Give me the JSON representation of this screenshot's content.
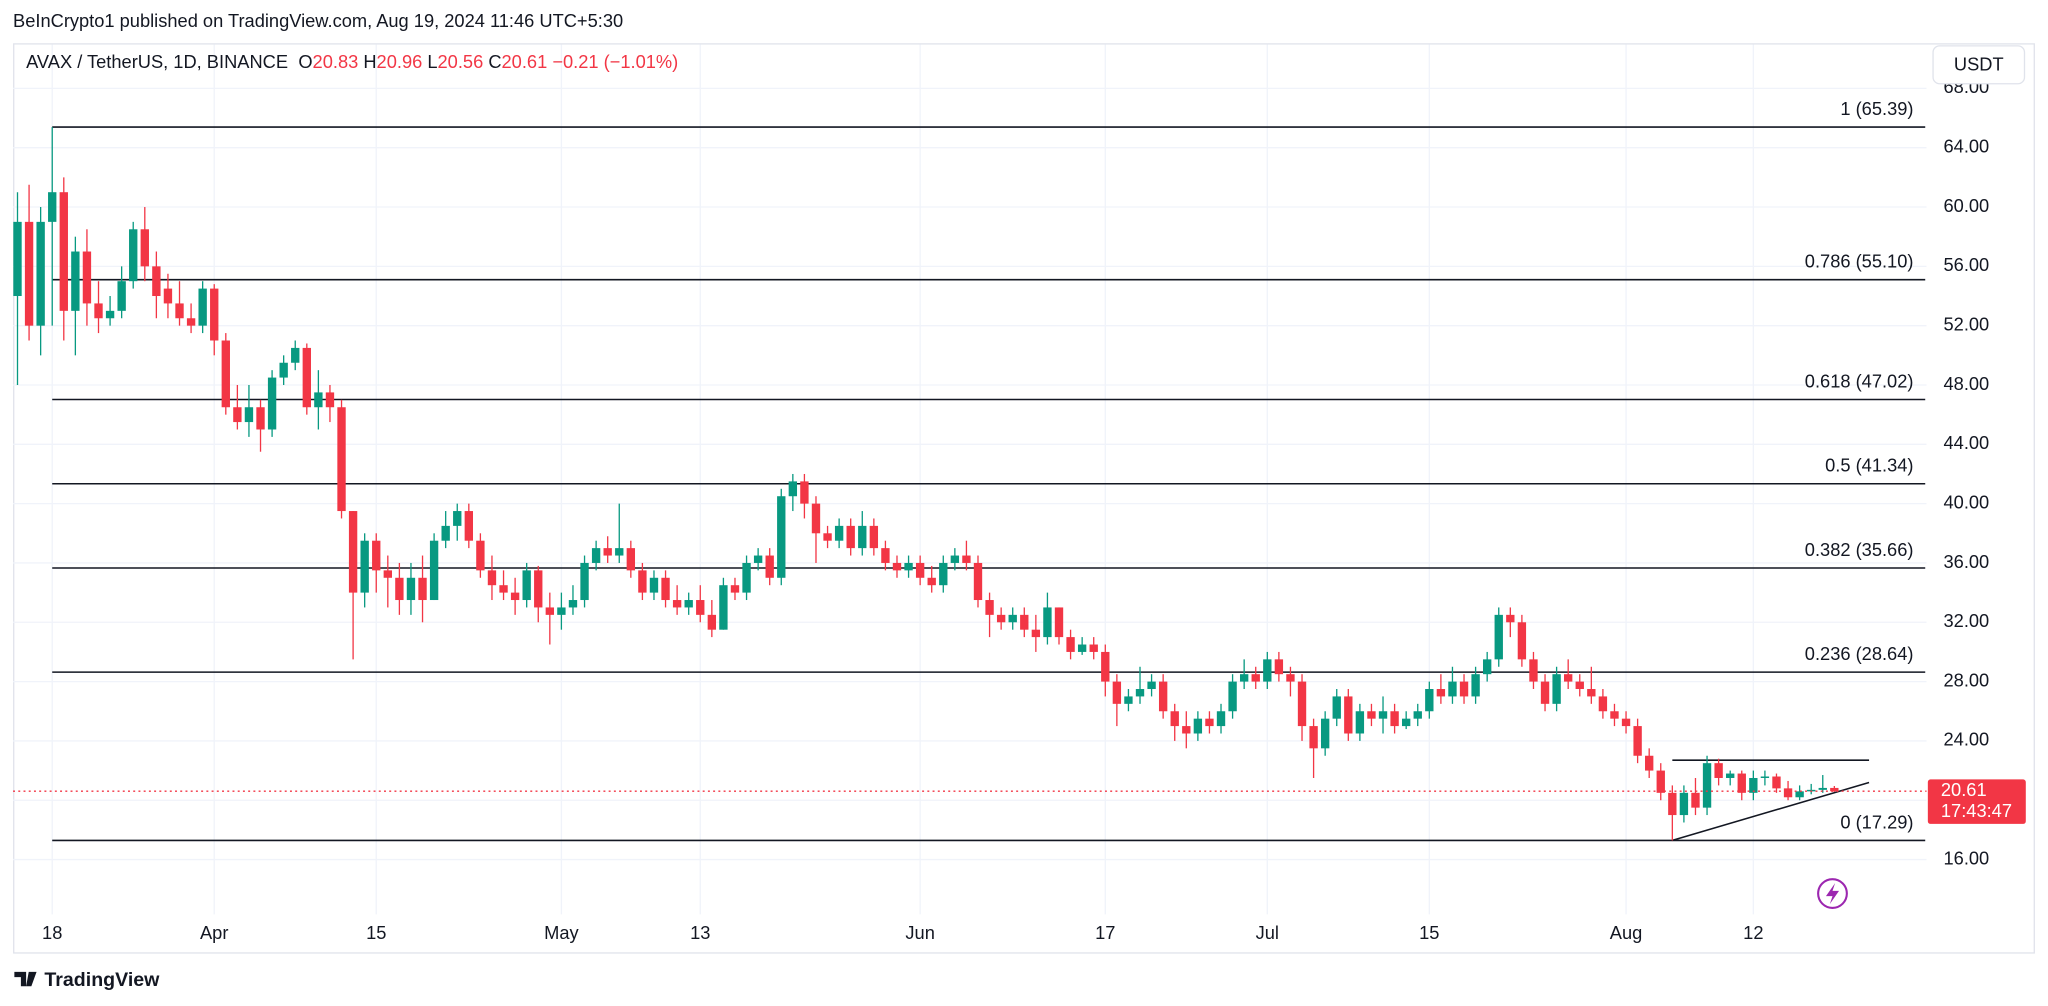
{
  "chart_data": {
    "type": "candlestick",
    "attribution": "BeInCrypto1 published on TradingView.com, Aug 19, 2024 11:46 UTC+5:30",
    "symbol": "AVAX / TetherUS, 1D, BINANCE",
    "ohlc_labels": [
      "O",
      "H",
      "L",
      "C"
    ],
    "change": "−0.21 (−1.01%)",
    "currency": "USDT",
    "countdown": "17:43:47",
    "logo_text": "TradingView",
    "up_color": "#089981",
    "down_color": "#f23645",
    "x": [
      "Mar 15",
      "Mar 16",
      "Mar 17",
      "Mar 18",
      "Mar 19",
      "Mar 20",
      "Mar 21",
      "Mar 22",
      "Mar 23",
      "Mar 24",
      "Mar 25",
      "Mar 26",
      "Mar 27",
      "Mar 28",
      "Mar 29",
      "Mar 30",
      "Mar 31",
      "Apr 1",
      "Apr 2",
      "Apr 3",
      "Apr 4",
      "Apr 5",
      "Apr 6",
      "Apr 7",
      "Apr 8",
      "Apr 9",
      "Apr 10",
      "Apr 11",
      "Apr 12",
      "Apr 13",
      "Apr 14",
      "Apr 15",
      "Apr 16",
      "Apr 17",
      "Apr 18",
      "Apr 19",
      "Apr 20",
      "Apr 21",
      "Apr 22",
      "Apr 23",
      "Apr 24",
      "Apr 25",
      "Apr 26",
      "Apr 27",
      "Apr 28",
      "Apr 29",
      "Apr 30",
      "May 1",
      "May 2",
      "May 3",
      "May 4",
      "May 5",
      "May 6",
      "May 7",
      "May 8",
      "May 9",
      "May 10",
      "May 11",
      "May 12",
      "May 13",
      "May 14",
      "May 15",
      "May 16",
      "May 17",
      "May 18",
      "May 19",
      "May 20",
      "May 21",
      "May 22",
      "May 23",
      "May 24",
      "May 25",
      "May 26",
      "May 27",
      "May 28",
      "May 29",
      "May 30",
      "May 31",
      "Jun 1",
      "Jun 2",
      "Jun 3",
      "Jun 4",
      "Jun 5",
      "Jun 6",
      "Jun 7",
      "Jun 8",
      "Jun 9",
      "Jun 10",
      "Jun 11",
      "Jun 12",
      "Jun 13",
      "Jun 14",
      "Jun 15",
      "Jun 16",
      "Jun 17",
      "Jun 18",
      "Jun 19",
      "Jun 20",
      "Jun 21",
      "Jun 22",
      "Jun 23",
      "Jun 24",
      "Jun 25",
      "Jun 26",
      "Jun 27",
      "Jun 28",
      "Jun 29",
      "Jun 30",
      "Jul 1",
      "Jul 2",
      "Jul 3",
      "Jul 4",
      "Jul 5",
      "Jul 6",
      "Jul 7",
      "Jul 8",
      "Jul 9",
      "Jul 10",
      "Jul 11",
      "Jul 12",
      "Jul 13",
      "Jul 14",
      "Jul 15",
      "Jul 16",
      "Jul 17",
      "Jul 18",
      "Jul 19",
      "Jul 20",
      "Jul 21",
      "Jul 22",
      "Jul 23",
      "Jul 24",
      "Jul 25",
      "Jul 26",
      "Jul 27",
      "Jul 28",
      "Jul 29",
      "Jul 30",
      "Jul 31",
      "Aug 1",
      "Aug 2",
      "Aug 3",
      "Aug 4",
      "Aug 5",
      "Aug 6",
      "Aug 7",
      "Aug 8",
      "Aug 9",
      "Aug 10",
      "Aug 11",
      "Aug 12",
      "Aug 13",
      "Aug 14",
      "Aug 15",
      "Aug 16",
      "Aug 17",
      "Aug 18",
      "Aug 19"
    ],
    "ohlc": [
      [
        54,
        61,
        48,
        59
      ],
      [
        59,
        61.5,
        51,
        52
      ],
      [
        52,
        60,
        50,
        59
      ],
      [
        59,
        65.39,
        52,
        61
      ],
      [
        61,
        62,
        51,
        53
      ],
      [
        53,
        58,
        50,
        57
      ],
      [
        57,
        58.5,
        52,
        53.5
      ],
      [
        53.5,
        55,
        51.5,
        52.5
      ],
      [
        52.5,
        54,
        52,
        53
      ],
      [
        53,
        56,
        52.5,
        55
      ],
      [
        55,
        59,
        54.5,
        58.5
      ],
      [
        58.5,
        60,
        55,
        56
      ],
      [
        56,
        57,
        52.5,
        54
      ],
      [
        54.5,
        55.5,
        52.5,
        53.5
      ],
      [
        53.5,
        55,
        52,
        52.5
      ],
      [
        52.5,
        53.5,
        51.5,
        52
      ],
      [
        52,
        55,
        51.5,
        54.5
      ],
      [
        54.5,
        54.8,
        50,
        51
      ],
      [
        51,
        51.5,
        46,
        46.5
      ],
      [
        46.5,
        48,
        45,
        45.5
      ],
      [
        45.5,
        48,
        44.5,
        46.5
      ],
      [
        46.5,
        47,
        43.5,
        45
      ],
      [
        45,
        49,
        44.5,
        48.5
      ],
      [
        48.5,
        50,
        48,
        49.5
      ],
      [
        49.5,
        51,
        49,
        50.5
      ],
      [
        50.5,
        50.8,
        46,
        46.5
      ],
      [
        46.5,
        49,
        45,
        47.5
      ],
      [
        47.5,
        48,
        45.5,
        46.5
      ],
      [
        46.5,
        47,
        39,
        39.5
      ],
      [
        39.5,
        39.5,
        29.5,
        34
      ],
      [
        34,
        38,
        33,
        37.5
      ],
      [
        37.5,
        38,
        34,
        35.5
      ],
      [
        35.5,
        36.5,
        33,
        35
      ],
      [
        35,
        36,
        32.5,
        33.5
      ],
      [
        33.5,
        36,
        32.5,
        35
      ],
      [
        35,
        36.5,
        32,
        33.5
      ],
      [
        33.5,
        38,
        33.5,
        37.5
      ],
      [
        37.5,
        39.5,
        37,
        38.5
      ],
      [
        38.5,
        40,
        37.5,
        39.5
      ],
      [
        39.5,
        40,
        37,
        37.5
      ],
      [
        37.5,
        38,
        35,
        35.5
      ],
      [
        35.5,
        36.5,
        33.5,
        34.5
      ],
      [
        34.5,
        35.5,
        33.5,
        34
      ],
      [
        34,
        35,
        32.5,
        33.5
      ],
      [
        33.5,
        36,
        33,
        35.5
      ],
      [
        35.5,
        35.8,
        32,
        33
      ],
      [
        33,
        34,
        30.5,
        32.5
      ],
      [
        32.5,
        34,
        31.5,
        33
      ],
      [
        33,
        34.5,
        32.5,
        33.5
      ],
      [
        33.5,
        36.5,
        33,
        36
      ],
      [
        36,
        37.5,
        35.5,
        37
      ],
      [
        37,
        37.8,
        36,
        36.5
      ],
      [
        36.5,
        40,
        36,
        37
      ],
      [
        37,
        37.5,
        35,
        35.5
      ],
      [
        35.5,
        36,
        33.5,
        34
      ],
      [
        34,
        35.5,
        33.5,
        35
      ],
      [
        35,
        35.5,
        33,
        33.5
      ],
      [
        33.5,
        34.5,
        32.5,
        33
      ],
      [
        33,
        34,
        32.5,
        33.5
      ],
      [
        33.5,
        34.5,
        32,
        32.5
      ],
      [
        32.5,
        33.5,
        31,
        31.5
      ],
      [
        31.5,
        35,
        31.5,
        34.5
      ],
      [
        34.5,
        35,
        33.5,
        34
      ],
      [
        34,
        36.5,
        33.5,
        36
      ],
      [
        36,
        37,
        35.5,
        36.5
      ],
      [
        36.5,
        37,
        34.5,
        35
      ],
      [
        35,
        41,
        34.5,
        40.5
      ],
      [
        40.5,
        42,
        39.5,
        41.5
      ],
      [
        41.5,
        42,
        39,
        40
      ],
      [
        40,
        40.5,
        36,
        38
      ],
      [
        38,
        38.5,
        37,
        37.5
      ],
      [
        37.5,
        39,
        37,
        38.5
      ],
      [
        38.5,
        39,
        36.5,
        37
      ],
      [
        37,
        39.5,
        36.5,
        38.5
      ],
      [
        38.5,
        39,
        36.5,
        37
      ],
      [
        37,
        37.5,
        35.5,
        36
      ],
      [
        36,
        36.5,
        35,
        35.5
      ],
      [
        35.5,
        36.5,
        35,
        36
      ],
      [
        36,
        36.5,
        34.5,
        35
      ],
      [
        35,
        35.8,
        34,
        34.5
      ],
      [
        34.5,
        36.5,
        34,
        36
      ],
      [
        36,
        37,
        35.5,
        36.5
      ],
      [
        36.5,
        37.5,
        35.5,
        36
      ],
      [
        36,
        36.5,
        33,
        33.5
      ],
      [
        33.5,
        34,
        31,
        32.5
      ],
      [
        32.5,
        33,
        31.5,
        32
      ],
      [
        32,
        33,
        31.5,
        32.5
      ],
      [
        32.5,
        33,
        31,
        31.5
      ],
      [
        31.5,
        32.5,
        30,
        31
      ],
      [
        31,
        34,
        30.5,
        33
      ],
      [
        33,
        33,
        30.5,
        31
      ],
      [
        31,
        31.5,
        29.5,
        30
      ],
      [
        30,
        31,
        29.8,
        30.5
      ],
      [
        30.5,
        31,
        29.5,
        30
      ],
      [
        30,
        30.5,
        27,
        28
      ],
      [
        28,
        28.5,
        25,
        26.5
      ],
      [
        26.5,
        27.5,
        26,
        27
      ],
      [
        27,
        29,
        26.5,
        27.5
      ],
      [
        27.5,
        28.5,
        27,
        28
      ],
      [
        28,
        28.5,
        25.5,
        26
      ],
      [
        26,
        26.5,
        24,
        25
      ],
      [
        25,
        26,
        23.5,
        24.5
      ],
      [
        24.5,
        26,
        24,
        25.5
      ],
      [
        25.5,
        26,
        24.5,
        25
      ],
      [
        25,
        26.5,
        24.5,
        26
      ],
      [
        26,
        28.5,
        25.5,
        28
      ],
      [
        28,
        29.5,
        27.5,
        28.5
      ],
      [
        28.5,
        29,
        27.5,
        28
      ],
      [
        28,
        30,
        27.5,
        29.5
      ],
      [
        29.5,
        30,
        28,
        28.5
      ],
      [
        28.5,
        29,
        27,
        28
      ],
      [
        28,
        28.5,
        24,
        25
      ],
      [
        25,
        25.5,
        21.5,
        23.5
      ],
      [
        23.5,
        26,
        23,
        25.5
      ],
      [
        25.5,
        27.5,
        25,
        27
      ],
      [
        27,
        27.5,
        24,
        24.5
      ],
      [
        24.5,
        26.5,
        24,
        26
      ],
      [
        26,
        26.5,
        25,
        25.5
      ],
      [
        25.5,
        27,
        24.5,
        26
      ],
      [
        26,
        26.5,
        24.5,
        25
      ],
      [
        25,
        26,
        24.8,
        25.5
      ],
      [
        25.5,
        26.5,
        25,
        26
      ],
      [
        26,
        28,
        25.5,
        27.5
      ],
      [
        27.5,
        28.5,
        26.5,
        27
      ],
      [
        27,
        29,
        26.5,
        28
      ],
      [
        28,
        28.5,
        26.5,
        27
      ],
      [
        27,
        29,
        26.5,
        28.5
      ],
      [
        28.5,
        30,
        28,
        29.5
      ],
      [
        29.5,
        33,
        29,
        32.5
      ],
      [
        32.5,
        33,
        31,
        32
      ],
      [
        32,
        32.5,
        29,
        29.5
      ],
      [
        29.5,
        30,
        27.5,
        28
      ],
      [
        28,
        28.5,
        26,
        26.5
      ],
      [
        26.5,
        29,
        26,
        28.5
      ],
      [
        28.5,
        29.5,
        27.5,
        28
      ],
      [
        28,
        28.5,
        27,
        27.5
      ],
      [
        27.5,
        29,
        26.5,
        27
      ],
      [
        27,
        27.5,
        25.5,
        26
      ],
      [
        26,
        26.5,
        25,
        25.5
      ],
      [
        25.5,
        26,
        24.5,
        25
      ],
      [
        25,
        25.5,
        22.5,
        23
      ],
      [
        23,
        23.5,
        21.5,
        22
      ],
      [
        22,
        22.5,
        20,
        20.5
      ],
      [
        20.5,
        21,
        17.29,
        19
      ],
      [
        19,
        21,
        18.5,
        20.5
      ],
      [
        20.5,
        21.5,
        19,
        19.5
      ],
      [
        19.5,
        23,
        19,
        22.5
      ],
      [
        22.5,
        22.8,
        21,
        21.5
      ],
      [
        21.5,
        22,
        21,
        21.8
      ],
      [
        21.8,
        22,
        20,
        20.5
      ],
      [
        20.5,
        22,
        20,
        21.5
      ],
      [
        21.5,
        22,
        21,
        21.6
      ],
      [
        21.6,
        21.8,
        20.5,
        20.8
      ],
      [
        20.8,
        21.3,
        20,
        20.2
      ],
      [
        20.2,
        21,
        20,
        20.6
      ],
      [
        20.6,
        21.1,
        20.4,
        20.7
      ],
      [
        20.7,
        21.7,
        20.5,
        20.83
      ],
      [
        20.83,
        20.96,
        20.56,
        20.61
      ]
    ],
    "xticks": [
      {
        "value": "Mar 18",
        "label": "18"
      },
      {
        "value": "Apr 1",
        "label": "Apr"
      },
      {
        "value": "Apr 15",
        "label": "15"
      },
      {
        "value": "May 1",
        "label": "May"
      },
      {
        "value": "May 13",
        "label": "13"
      },
      {
        "value": "Jun 1",
        "label": "Jun"
      },
      {
        "value": "Jun 17",
        "label": "17"
      },
      {
        "value": "Jul 1",
        "label": "Jul"
      },
      {
        "value": "Jul 15",
        "label": "15"
      },
      {
        "value": "Aug 1",
        "label": "Aug"
      },
      {
        "value": "Aug 12",
        "label": "12"
      }
    ],
    "ylim": [
      12.3,
      68.49
    ],
    "yticks": [
      {
        "value": 16,
        "label": "16.00"
      },
      {
        "value": 20,
        "label": "20.00"
      },
      {
        "value": 24,
        "label": "24.00"
      },
      {
        "value": 28,
        "label": "28.00"
      },
      {
        "value": 32,
        "label": "32.00"
      },
      {
        "value": 36,
        "label": "36.00"
      },
      {
        "value": 40,
        "label": "40.00"
      },
      {
        "value": 44,
        "label": "44.00"
      },
      {
        "value": 48,
        "label": "48.00"
      },
      {
        "value": 52,
        "label": "52.00"
      },
      {
        "value": 56,
        "label": "56.00"
      },
      {
        "value": 60,
        "label": "60.00"
      },
      {
        "value": 64,
        "label": "64.00"
      },
      {
        "value": 68,
        "label": "68.00"
      }
    ],
    "grid": true,
    "fib_levels": [
      {
        "label": "1 (65.39)",
        "value": 65.39
      },
      {
        "label": "0.786 (55.10)",
        "value": 55.1
      },
      {
        "label": "0.618 (47.02)",
        "value": 47.02
      },
      {
        "label": "0.5 (41.34)",
        "value": 41.34
      },
      {
        "label": "0.382 (35.66)",
        "value": 35.66
      },
      {
        "label": "0.236 (28.64)",
        "value": 28.64
      },
      {
        "label": "0 (17.29)",
        "value": 17.29
      }
    ],
    "trendlines": [
      {
        "x": [
          "Aug 5",
          "Aug 22"
        ],
        "y": [
          22.7,
          22.7
        ]
      },
      {
        "x": [
          "Aug 5",
          "Aug 22"
        ],
        "y": [
          17.29,
          21.2
        ]
      }
    ]
  }
}
